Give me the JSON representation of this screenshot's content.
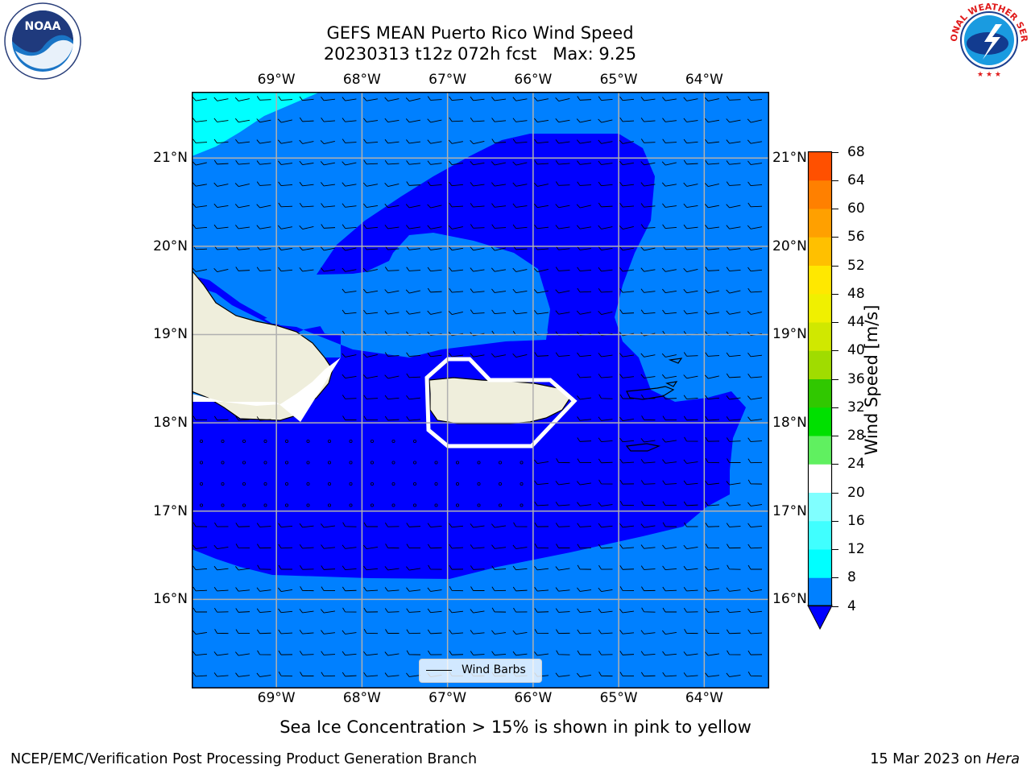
{
  "title": {
    "line1": "GEFS MEAN Puerto Rico Wind Speed",
    "line2": "20230313 t12z 072h fcst   Max: 9.25"
  },
  "map": {
    "lon_range": [
      -69.99,
      -63.25
    ],
    "lat_range": [
      15.0,
      21.75
    ],
    "lon_ticks": [
      {
        "value": -69,
        "label": "69°W"
      },
      {
        "value": -68,
        "label": "68°W"
      },
      {
        "value": -67,
        "label": "67°W"
      },
      {
        "value": -66,
        "label": "66°W"
      },
      {
        "value": -65,
        "label": "65°W"
      },
      {
        "value": -64,
        "label": "64°W"
      }
    ],
    "lat_ticks": [
      {
        "value": 21,
        "label": "21°N"
      },
      {
        "value": 20,
        "label": "20°N"
      },
      {
        "value": 19,
        "label": "19°N"
      },
      {
        "value": 18,
        "label": "18°N"
      },
      {
        "value": 17,
        "label": "17°N"
      },
      {
        "value": 16,
        "label": "16°N"
      }
    ],
    "gridlines": true,
    "colors": {
      "cyan": "#00ffff",
      "light_blue": "#0080ff",
      "blue": "#0000ff",
      "land": "#efeedc",
      "white": "#ffffff"
    }
  },
  "legend": {
    "label": "Wind Barbs",
    "placement": "bottom-center"
  },
  "colorbar": {
    "label": "Wind Speed [m/s]",
    "ticks": [
      "4",
      "8",
      "12",
      "16",
      "20",
      "24",
      "28",
      "32",
      "36",
      "40",
      "44",
      "48",
      "52",
      "56",
      "60",
      "64",
      "68"
    ],
    "colors": [
      "#0080ff",
      "#00ffff",
      "#40ffff",
      "#80ffff",
      "#ffffff",
      "#60f060",
      "#00e000",
      "#30c800",
      "#a0dc00",
      "#d0e800",
      "#f0f000",
      "#ffe800",
      "#ffc000",
      "#ffa000",
      "#ff8000",
      "#ff5000",
      "#ff2000",
      "#ff0000"
    ],
    "extend_min_color": "#0000ff"
  },
  "logos": {
    "noaa_text": "NOAA",
    "nws_text": "NATIONAL WEATHER SERVICE"
  },
  "note": "Sea Ice Concentration > 15% is shown in pink to yellow",
  "footer": {
    "left": "NCEP/EMC/Verification Post Processing Product Generation Branch",
    "right_date": "15 Mar 2023 on ",
    "right_machine": "Hera"
  }
}
